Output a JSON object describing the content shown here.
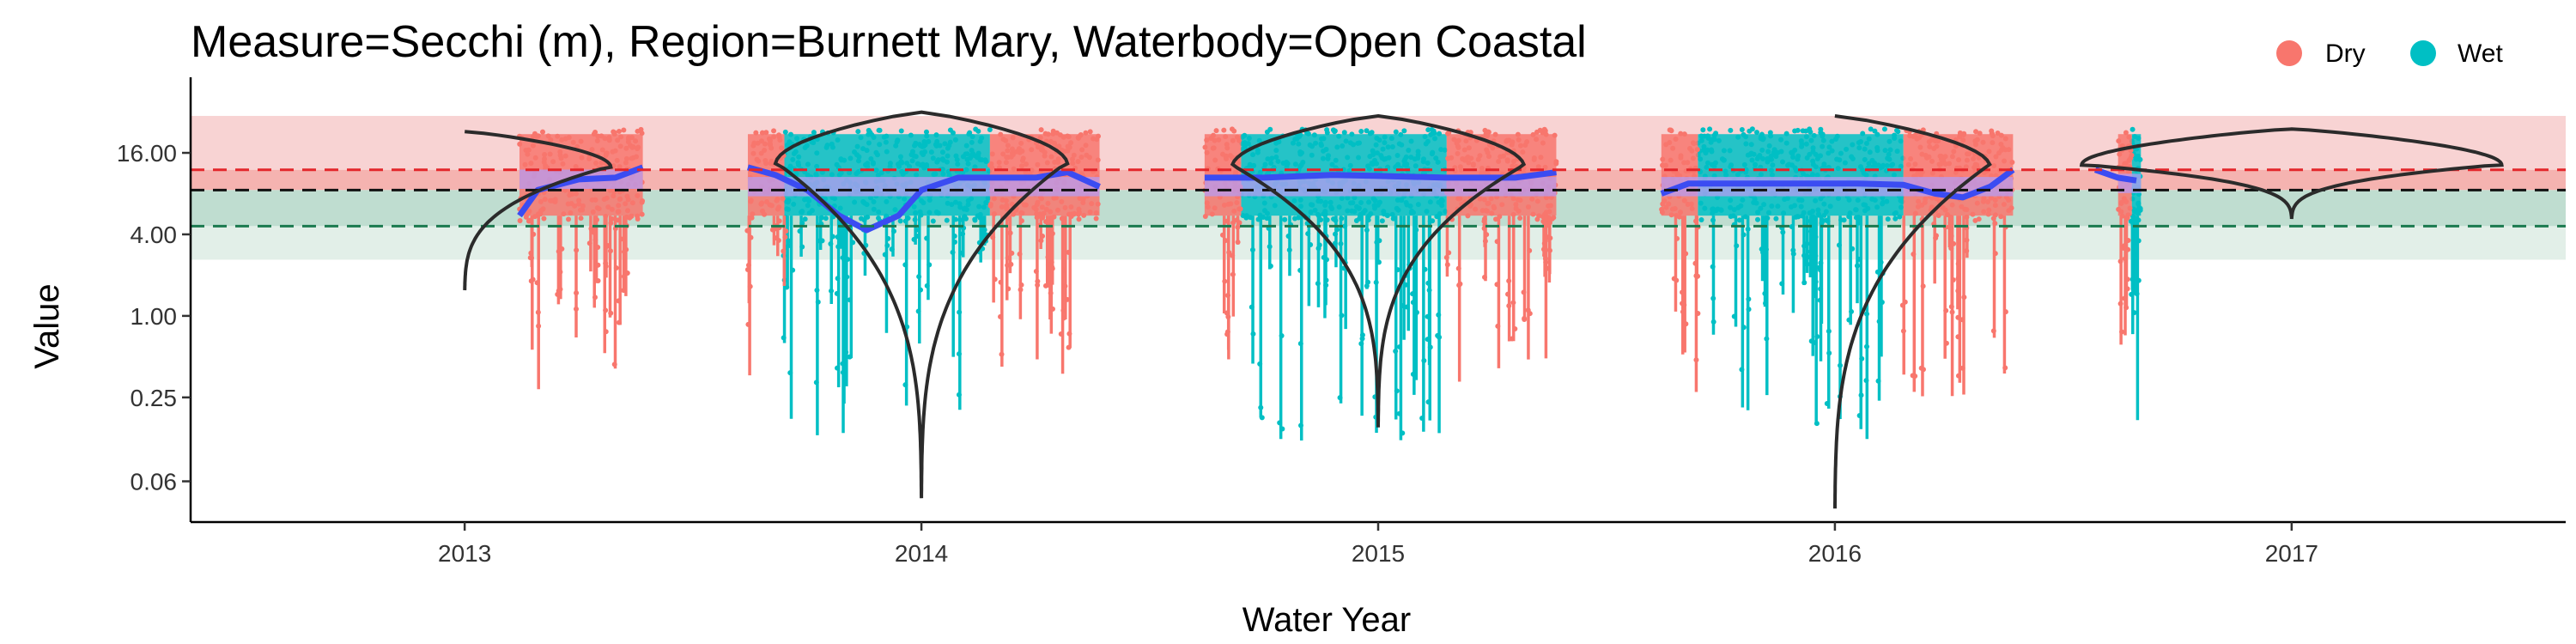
{
  "chart_data": {
    "type": "scatter",
    "title": "Measure=Secchi (m), Region=Burnett Mary, Waterbody=Open Coastal",
    "xlabel": "Water Year",
    "ylabel": "Value",
    "y_scale": "log",
    "x_ticks": [
      "2013",
      "2014",
      "2015",
      "2016",
      "2017"
    ],
    "y_ticks": [
      0.06,
      0.25,
      1.0,
      4.0,
      16.0
    ],
    "y_tick_labels": [
      "0.06",
      "0.25",
      "1.00",
      "4.00",
      "16.00"
    ],
    "xlim": [
      2012.4,
      2017.6
    ],
    "ylim": [
      0.03,
      50
    ],
    "grid": false,
    "legend": {
      "position": "top-right",
      "entries": [
        {
          "name": "Dry",
          "color": "#F8766D"
        },
        {
          "name": "Wet",
          "color": "#00BFC4"
        }
      ]
    },
    "reference_lines": [
      {
        "value": 12,
        "color": "#e3262b",
        "style": "dashed"
      },
      {
        "value": 8.5,
        "color": "#111111",
        "style": "dashed"
      },
      {
        "value": 4.6,
        "color": "#1b7a4f",
        "style": "dashed"
      }
    ],
    "bands": [
      {
        "from": 12,
        "to": 30,
        "color": "#f8d3d3"
      },
      {
        "from": 8.5,
        "to": 12,
        "color": "#f5b3b0"
      },
      {
        "from": 4.6,
        "to": 8.5,
        "color": "#bfddd0"
      },
      {
        "from": 2.6,
        "to": 4.6,
        "color": "#e2efe8"
      }
    ],
    "segments": [
      {
        "year_label": "2013",
        "dry_ranges": [
          [
            2013.12,
            2013.39
          ]
        ],
        "wet_ranges": [],
        "median": 10.2,
        "trend": [
          [
            2013.12,
            5.5
          ],
          [
            2013.16,
            8.5
          ],
          [
            2013.25,
            10.2
          ],
          [
            2013.33,
            10.5
          ],
          [
            2013.39,
            12.5
          ]
        ]
      },
      {
        "year_label": "2014",
        "dry_ranges": [
          [
            2013.62,
            2013.7
          ],
          [
            2014.15,
            2014.39
          ]
        ],
        "wet_ranges": [
          [
            2013.7,
            2014.15
          ]
        ],
        "median": 9.0,
        "trend": [
          [
            2013.62,
            12.5
          ],
          [
            2013.68,
            11.0
          ],
          [
            2013.75,
            8.5
          ],
          [
            2013.82,
            5.5
          ],
          [
            2013.88,
            4.3
          ],
          [
            2013.95,
            5.5
          ],
          [
            2014.0,
            8.5
          ],
          [
            2014.08,
            10.5
          ],
          [
            2014.15,
            10.5
          ],
          [
            2014.25,
            10.5
          ],
          [
            2014.32,
            11.5
          ],
          [
            2014.39,
            9.0
          ]
        ]
      },
      {
        "year_label": "2015",
        "dry_ranges": [
          [
            2014.62,
            2014.7
          ],
          [
            2015.15,
            2015.39
          ]
        ],
        "wet_ranges": [
          [
            2014.7,
            2015.15
          ]
        ],
        "median": 9.0,
        "trend": [
          [
            2014.62,
            10.5
          ],
          [
            2014.75,
            10.5
          ],
          [
            2014.9,
            11.0
          ],
          [
            2015.0,
            10.8
          ],
          [
            2015.15,
            10.5
          ],
          [
            2015.3,
            10.5
          ],
          [
            2015.39,
            11.5
          ]
        ]
      },
      {
        "year_label": "2016",
        "dry_ranges": [
          [
            2015.62,
            2015.7
          ],
          [
            2016.15,
            2016.39
          ]
        ],
        "wet_ranges": [
          [
            2015.7,
            2016.15
          ]
        ],
        "median": 9.0,
        "trend": [
          [
            2015.62,
            8.0
          ],
          [
            2015.68,
            9.5
          ],
          [
            2015.8,
            9.5
          ],
          [
            2015.95,
            9.5
          ],
          [
            2016.05,
            9.5
          ],
          [
            2016.15,
            9.3
          ],
          [
            2016.22,
            8.0
          ],
          [
            2016.28,
            7.5
          ],
          [
            2016.34,
            9.0
          ],
          [
            2016.39,
            12.0
          ]
        ]
      },
      {
        "year_label": "2017",
        "dry_ranges": [
          [
            2016.62,
            2016.65
          ]
        ],
        "wet_ranges": [
          [
            2016.65,
            2016.67
          ]
        ],
        "median": 9.5,
        "trend": [
          [
            2016.57,
            12.0
          ],
          [
            2016.62,
            10.5
          ],
          [
            2016.66,
            10.0
          ]
        ]
      }
    ],
    "violins": [
      {
        "center": 2013,
        "top": 23,
        "bottom": 1.5,
        "mode": 12.5,
        "half_width": 0.32
      },
      {
        "center": 2014,
        "top": 32,
        "bottom": 0.045,
        "mode": 13,
        "half_width": 0.32
      },
      {
        "center": 2015,
        "top": 30,
        "bottom": 0.15,
        "mode": 12.5,
        "half_width": 0.32
      },
      {
        "center": 2016,
        "top": 30,
        "bottom": 0.035,
        "mode": 12.5,
        "half_width": 0.34
      },
      {
        "center": 2017,
        "top": 24,
        "bottom": 5.2,
        "mode": 13,
        "half_width": 0.46
      }
    ]
  }
}
